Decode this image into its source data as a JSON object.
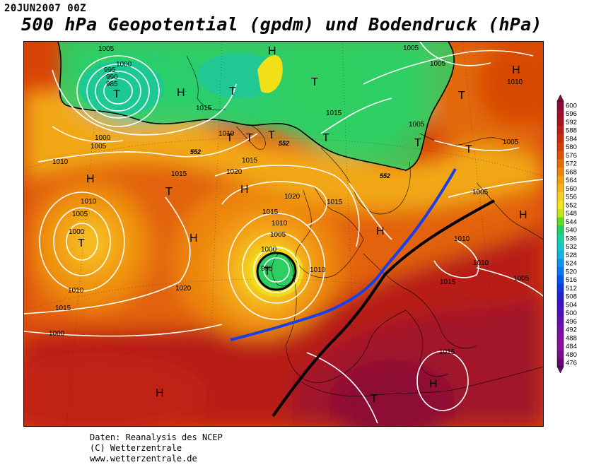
{
  "header": {
    "date": "20JUN2007 00Z",
    "title": "500 hPa Geopotential (gpdm) und Bodendruck (hPa)"
  },
  "credits": {
    "line1": "Daten: Reanalysis des NCEP",
    "line2": "(C) Wetterzentrale",
    "line3": "www.wetterzentrale.de"
  },
  "legend": {
    "levels": [
      "600",
      "596",
      "592",
      "588",
      "584",
      "580",
      "576",
      "572",
      "568",
      "564",
      "560",
      "556",
      "552",
      "548",
      "544",
      "540",
      "536",
      "532",
      "528",
      "524",
      "520",
      "516",
      "512",
      "508",
      "504",
      "500",
      "496",
      "492",
      "488",
      "484",
      "480",
      "476"
    ],
    "colors": [
      "#8b0a3c",
      "#9a0e2e",
      "#aa1420",
      "#bb1e16",
      "#c92c0c",
      "#d43c06",
      "#de5006",
      "#e56a08",
      "#ec840c",
      "#f29e10",
      "#f6b418",
      "#f8cc20",
      "#f4e418",
      "#c8e418",
      "#60dc20",
      "#20d060",
      "#18d0a0",
      "#10c8c8",
      "#10b4e0",
      "#0894f0",
      "#0874f8",
      "#0054f4",
      "#1038e0",
      "#2820d0",
      "#4010c4",
      "#5010b8",
      "#6410b0",
      "#7410a8",
      "#8010a0",
      "#8c1098",
      "#7a0c88",
      "#64086c"
    ]
  },
  "pressure_systems": {
    "highs": [
      "H",
      "H",
      "H",
      "H",
      "H",
      "H",
      "H",
      "H",
      "H",
      "H"
    ],
    "lows": [
      "T",
      "T",
      "T",
      "T",
      "T",
      "T",
      "T",
      "T",
      "T",
      "T",
      "T",
      "T",
      "T",
      "T"
    ]
  },
  "isobars": [
    "1005",
    "1000",
    "995",
    "990",
    "985",
    "1000",
    "1005",
    "1010",
    "1015",
    "1015",
    "1015",
    "1020",
    "1015",
    "1010",
    "1010",
    "1005",
    "1000",
    "1015",
    "1010",
    "1005",
    "1000",
    "995",
    "1020",
    "1010",
    "1015",
    "1020",
    "1015",
    "1010",
    "1005",
    "1005",
    "1005",
    "1010",
    "1010",
    "1005",
    "1015",
    "1010",
    "1005",
    "1015",
    "1000",
    "1005"
  ],
  "geopotential_labels": [
    "552",
    "552",
    "552"
  ]
}
